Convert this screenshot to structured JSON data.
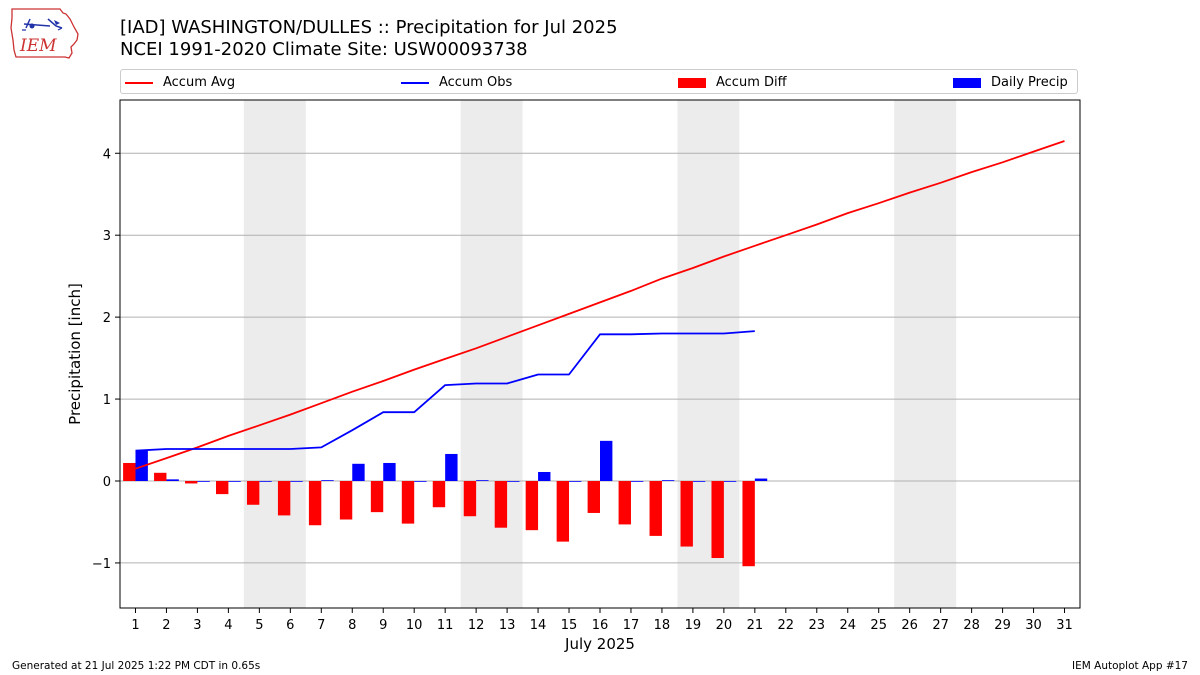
{
  "header": {
    "title_line1": "[IAD] WASHINGTON/DULLES :: Precipitation for Jul 2025",
    "title_line2": "NCEI 1991-2020 Climate Site: USW00093738",
    "logo_text": "IEM"
  },
  "footer": {
    "left": "Generated at 21 Jul 2025 1:22 PM CDT in 0.65s",
    "right": "IEM Autoplot App #17"
  },
  "colors": {
    "accum_avg": "#ff0000",
    "accum_obs": "#0000ff",
    "accum_diff": "#ff0000",
    "daily_precip": "#0000ff",
    "weekend_shade": "#ececec",
    "grid": "#b0b0b0"
  },
  "chart_data": {
    "type": "bar",
    "xlabel": "July 2025",
    "ylabel": "Precipitation [inch]",
    "xlim": [
      0.5,
      31.5
    ],
    "ylim": [
      -1.55,
      4.65
    ],
    "yticks": [
      -1,
      0,
      1,
      2,
      3,
      4
    ],
    "ytick_labels": [
      "−1",
      "0",
      "1",
      "2",
      "3",
      "4"
    ],
    "grid": "horizontal",
    "legend_position": "top",
    "legend": [
      "Accum Avg",
      "Accum Obs",
      "Accum Diff",
      "Daily Precip"
    ],
    "days": [
      1,
      2,
      3,
      4,
      5,
      6,
      7,
      8,
      9,
      10,
      11,
      12,
      13,
      14,
      15,
      16,
      17,
      18,
      19,
      20,
      21,
      22,
      23,
      24,
      25,
      26,
      27,
      28,
      29,
      30,
      31
    ],
    "weekend_spans": [
      [
        4.5,
        6.5
      ],
      [
        11.5,
        13.5
      ],
      [
        18.5,
        20.5
      ],
      [
        25.5,
        27.5
      ]
    ],
    "series": [
      {
        "name": "Accum Avg",
        "kind": "line",
        "color": "#ff0000",
        "x": [
          1,
          2,
          3,
          4,
          5,
          6,
          7,
          8,
          9,
          10,
          11,
          12,
          13,
          14,
          15,
          16,
          17,
          18,
          19,
          20,
          21,
          22,
          23,
          24,
          25,
          26,
          27,
          28,
          29,
          30,
          31
        ],
        "values": [
          0.15,
          0.28,
          0.41,
          0.55,
          0.68,
          0.81,
          0.95,
          1.09,
          1.22,
          1.36,
          1.49,
          1.62,
          1.76,
          1.9,
          2.04,
          2.18,
          2.32,
          2.47,
          2.6,
          2.74,
          2.87,
          3.0,
          3.13,
          3.27,
          3.39,
          3.52,
          3.64,
          3.77,
          3.89,
          4.02,
          4.15
        ]
      },
      {
        "name": "Accum Obs",
        "kind": "line",
        "color": "#0000ff",
        "x": [
          1,
          2,
          3,
          4,
          5,
          6,
          7,
          8,
          9,
          10,
          11,
          12,
          13,
          14,
          15,
          16,
          17,
          18,
          19,
          20,
          21
        ],
        "values": [
          0.37,
          0.39,
          0.39,
          0.39,
          0.39,
          0.39,
          0.41,
          0.62,
          0.84,
          0.84,
          1.17,
          1.19,
          1.19,
          1.3,
          1.3,
          1.79,
          1.79,
          1.8,
          1.8,
          1.8,
          1.83
        ]
      },
      {
        "name": "Accum Diff",
        "kind": "bar",
        "color": "#ff0000",
        "x": [
          1,
          2,
          3,
          4,
          5,
          6,
          7,
          8,
          9,
          10,
          11,
          12,
          13,
          14,
          15,
          16,
          17,
          18,
          19,
          20,
          21
        ],
        "values": [
          0.22,
          0.1,
          -0.03,
          -0.16,
          -0.29,
          -0.42,
          -0.54,
          -0.47,
          -0.38,
          -0.52,
          -0.32,
          -0.43,
          -0.57,
          -0.6,
          -0.74,
          -0.39,
          -0.53,
          -0.67,
          -0.8,
          -0.94,
          -1.04
        ]
      },
      {
        "name": "Daily Precip",
        "kind": "bar",
        "color": "#0000ff",
        "x": [
          1,
          2,
          3,
          4,
          5,
          6,
          7,
          8,
          9,
          10,
          11,
          12,
          13,
          14,
          15,
          16,
          17,
          18,
          19,
          20,
          21
        ],
        "values": [
          0.37,
          0.02,
          0,
          0,
          0,
          0,
          0.01,
          0.21,
          0.22,
          0,
          0.33,
          0.01,
          0,
          0.11,
          0,
          0.49,
          0,
          0.01,
          0,
          0,
          0.03
        ]
      }
    ]
  }
}
